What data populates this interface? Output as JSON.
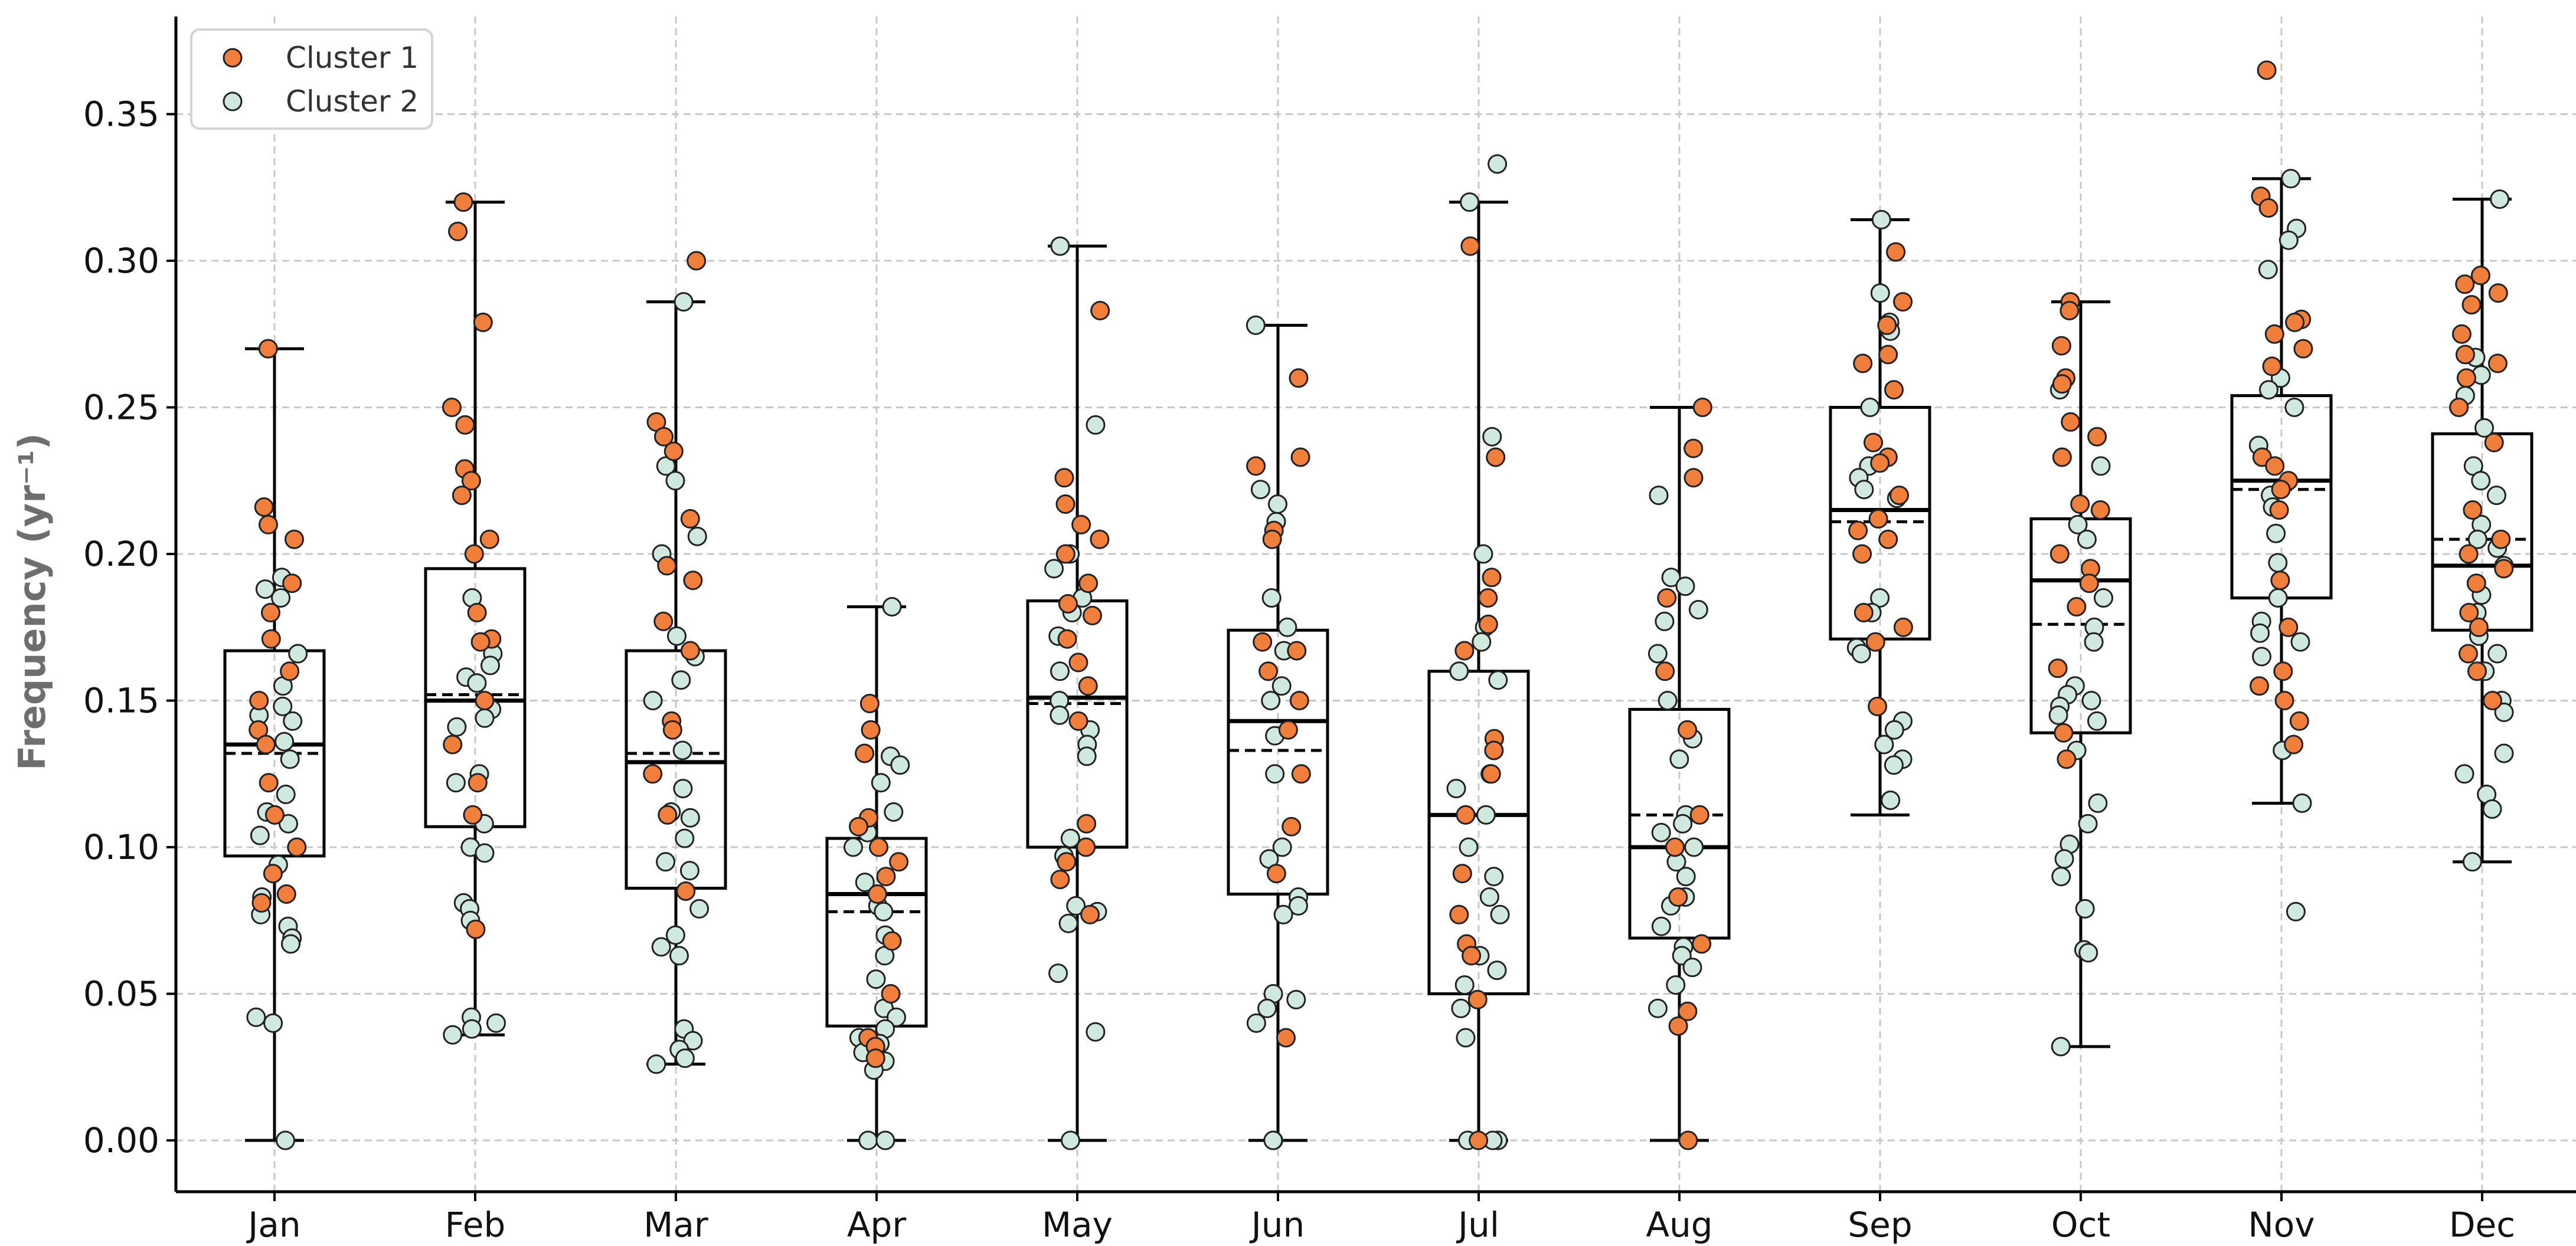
{
  "chart_data": {
    "type": "box",
    "ylabel": "Frequency (yr⁻¹)",
    "xlabel": "",
    "title": "",
    "ylim": [
      -0.018,
      0.383
    ],
    "yticks": [
      0.0,
      0.05,
      0.1,
      0.15,
      0.2,
      0.25,
      0.3,
      0.35
    ],
    "ytick_labels": [
      "0.00",
      "0.05",
      "0.10",
      "0.15",
      "0.20",
      "0.25",
      "0.30",
      "0.35"
    ],
    "grid": true,
    "legend_position": "top-left",
    "categories": [
      "Jan",
      "Feb",
      "Mar",
      "Apr",
      "May",
      "Jun",
      "Jul",
      "Aug",
      "Sep",
      "Oct",
      "Nov",
      "Dec"
    ],
    "legend": [
      {
        "name": "Cluster 1",
        "color": "#f07f3c"
      },
      {
        "name": "Cluster 2",
        "color": "#cfe9df"
      }
    ],
    "boxes": [
      {
        "month": "Jan",
        "whisker_low": 0.0,
        "q1": 0.097,
        "median": 0.135,
        "mean": 0.132,
        "q3": 0.167,
        "whisker_high": 0.27
      },
      {
        "month": "Feb",
        "whisker_low": 0.036,
        "q1": 0.107,
        "median": 0.15,
        "mean": 0.152,
        "q3": 0.195,
        "whisker_high": 0.32
      },
      {
        "month": "Mar",
        "whisker_low": 0.026,
        "q1": 0.086,
        "median": 0.129,
        "mean": 0.132,
        "q3": 0.167,
        "whisker_high": 0.286
      },
      {
        "month": "Apr",
        "whisker_low": 0.0,
        "q1": 0.039,
        "median": 0.084,
        "mean": 0.078,
        "q3": 0.103,
        "whisker_high": 0.182
      },
      {
        "month": "May",
        "whisker_low": 0.0,
        "q1": 0.1,
        "median": 0.151,
        "mean": 0.149,
        "q3": 0.184,
        "whisker_high": 0.305
      },
      {
        "month": "Jun",
        "whisker_low": 0.0,
        "q1": 0.084,
        "median": 0.143,
        "mean": 0.133,
        "q3": 0.174,
        "whisker_high": 0.278
      },
      {
        "month": "Jul",
        "whisker_low": 0.0,
        "q1": 0.05,
        "median": 0.111,
        "mean": 0.111,
        "q3": 0.16,
        "whisker_high": 0.32
      },
      {
        "month": "Aug",
        "whisker_low": 0.0,
        "q1": 0.069,
        "median": 0.1,
        "mean": 0.111,
        "q3": 0.147,
        "whisker_high": 0.25
      },
      {
        "month": "Sep",
        "whisker_low": 0.111,
        "q1": 0.171,
        "median": 0.215,
        "mean": 0.211,
        "q3": 0.25,
        "whisker_high": 0.314
      },
      {
        "month": "Oct",
        "whisker_low": 0.032,
        "q1": 0.139,
        "median": 0.191,
        "mean": 0.176,
        "q3": 0.212,
        "whisker_high": 0.286
      },
      {
        "month": "Nov",
        "whisker_low": 0.115,
        "q1": 0.185,
        "median": 0.225,
        "mean": 0.222,
        "q3": 0.254,
        "whisker_high": 0.328
      },
      {
        "month": "Dec",
        "whisker_low": 0.095,
        "q1": 0.174,
        "median": 0.196,
        "mean": 0.205,
        "q3": 0.241,
        "whisker_high": 0.321
      }
    ],
    "points": {
      "Jan": {
        "cluster1": [
          0.27,
          0.216,
          0.21,
          0.205,
          0.19,
          0.18,
          0.171,
          0.16,
          0.15,
          0.14,
          0.135,
          0.122,
          0.111,
          0.1,
          0.091,
          0.084,
          0.081
        ],
        "cluster2": [
          0.192,
          0.188,
          0.185,
          0.166,
          0.155,
          0.148,
          0.145,
          0.143,
          0.136,
          0.13,
          0.118,
          0.112,
          0.108,
          0.104,
          0.094,
          0.083,
          0.077,
          0.073,
          0.069,
          0.067,
          0.042,
          0.04,
          0.0
        ]
      },
      "Feb": {
        "cluster1": [
          0.32,
          0.31,
          0.279,
          0.25,
          0.244,
          0.229,
          0.225,
          0.22,
          0.205,
          0.2,
          0.18,
          0.171,
          0.17,
          0.15,
          0.135,
          0.122,
          0.111,
          0.072
        ],
        "cluster2": [
          0.185,
          0.166,
          0.162,
          0.158,
          0.156,
          0.147,
          0.144,
          0.141,
          0.125,
          0.122,
          0.108,
          0.1,
          0.098,
          0.081,
          0.079,
          0.075,
          0.042,
          0.04,
          0.038,
          0.036
        ]
      },
      "Mar": {
        "cluster1": [
          0.3,
          0.245,
          0.24,
          0.235,
          0.212,
          0.196,
          0.191,
          0.177,
          0.167,
          0.143,
          0.14,
          0.125,
          0.111,
          0.085
        ],
        "cluster2": [
          0.286,
          0.23,
          0.225,
          0.206,
          0.2,
          0.172,
          0.165,
          0.157,
          0.15,
          0.133,
          0.12,
          0.112,
          0.11,
          0.103,
          0.095,
          0.092,
          0.079,
          0.07,
          0.066,
          0.063,
          0.038,
          0.034,
          0.031,
          0.028,
          0.026
        ]
      },
      "Apr": {
        "cluster1": [
          0.149,
          0.14,
          0.132,
          0.11,
          0.107,
          0.1,
          0.095,
          0.09,
          0.084,
          0.068,
          0.05,
          0.035,
          0.032,
          0.028
        ],
        "cluster2": [
          0.182,
          0.131,
          0.128,
          0.122,
          0.112,
          0.105,
          0.1,
          0.088,
          0.08,
          0.078,
          0.07,
          0.063,
          0.055,
          0.045,
          0.042,
          0.038,
          0.035,
          0.033,
          0.03,
          0.027,
          0.024,
          0.0,
          0.0
        ]
      },
      "May": {
        "cluster1": [
          0.283,
          0.226,
          0.217,
          0.21,
          0.205,
          0.2,
          0.19,
          0.183,
          0.179,
          0.171,
          0.163,
          0.155,
          0.143,
          0.108,
          0.1,
          0.095,
          0.089,
          0.077
        ],
        "cluster2": [
          0.305,
          0.244,
          0.2,
          0.195,
          0.185,
          0.18,
          0.172,
          0.16,
          0.15,
          0.145,
          0.14,
          0.135,
          0.131,
          0.103,
          0.097,
          0.08,
          0.078,
          0.074,
          0.057,
          0.037,
          0.0
        ]
      },
      "Jun": {
        "cluster1": [
          0.26,
          0.233,
          0.23,
          0.208,
          0.205,
          0.17,
          0.167,
          0.16,
          0.15,
          0.14,
          0.125,
          0.107,
          0.091,
          0.035
        ],
        "cluster2": [
          0.278,
          0.222,
          0.217,
          0.211,
          0.185,
          0.175,
          0.167,
          0.155,
          0.15,
          0.138,
          0.125,
          0.1,
          0.096,
          0.083,
          0.08,
          0.077,
          0.05,
          0.048,
          0.045,
          0.04,
          0.0,
          0.0
        ]
      },
      "Jul": {
        "cluster1": [
          0.305,
          0.233,
          0.192,
          0.185,
          0.176,
          0.167,
          0.137,
          0.133,
          0.125,
          0.111,
          0.091,
          0.077,
          0.067,
          0.063,
          0.048,
          0.0
        ],
        "cluster2": [
          0.333,
          0.32,
          0.24,
          0.2,
          0.175,
          0.17,
          0.16,
          0.157,
          0.125,
          0.12,
          0.111,
          0.1,
          0.09,
          0.083,
          0.077,
          0.063,
          0.058,
          0.053,
          0.045,
          0.035,
          0.0,
          0.0,
          0.0
        ]
      },
      "Aug": {
        "cluster1": [
          0.25,
          0.236,
          0.226,
          0.185,
          0.16,
          0.14,
          0.111,
          0.1,
          0.083,
          0.067,
          0.044,
          0.039,
          0.0
        ],
        "cluster2": [
          0.22,
          0.192,
          0.189,
          0.181,
          0.177,
          0.166,
          0.15,
          0.137,
          0.13,
          0.111,
          0.108,
          0.105,
          0.1,
          0.095,
          0.09,
          0.083,
          0.08,
          0.073,
          0.066,
          0.063,
          0.059,
          0.053,
          0.045
        ]
      },
      "Sep": {
        "cluster1": [
          0.303,
          0.286,
          0.278,
          0.268,
          0.265,
          0.256,
          0.238,
          0.233,
          0.231,
          0.22,
          0.212,
          0.208,
          0.205,
          0.2,
          0.18,
          0.175,
          0.17,
          0.148
        ],
        "cluster2": [
          0.314,
          0.289,
          0.279,
          0.276,
          0.25,
          0.23,
          0.226,
          0.222,
          0.219,
          0.185,
          0.18,
          0.168,
          0.166,
          0.143,
          0.14,
          0.135,
          0.13,
          0.128,
          0.116
        ]
      },
      "Oct": {
        "cluster1": [
          0.286,
          0.283,
          0.271,
          0.26,
          0.258,
          0.245,
          0.24,
          0.233,
          0.217,
          0.215,
          0.2,
          0.195,
          0.19,
          0.182,
          0.161,
          0.139,
          0.13
        ],
        "cluster2": [
          0.256,
          0.23,
          0.21,
          0.205,
          0.185,
          0.175,
          0.17,
          0.155,
          0.152,
          0.15,
          0.148,
          0.145,
          0.143,
          0.133,
          0.115,
          0.108,
          0.101,
          0.096,
          0.09,
          0.079,
          0.065,
          0.064,
          0.032
        ]
      },
      "Nov": {
        "cluster1": [
          0.365,
          0.322,
          0.318,
          0.28,
          0.279,
          0.275,
          0.27,
          0.264,
          0.233,
          0.23,
          0.225,
          0.222,
          0.215,
          0.191,
          0.175,
          0.16,
          0.155,
          0.15,
          0.143,
          0.135
        ],
        "cluster2": [
          0.328,
          0.311,
          0.307,
          0.297,
          0.26,
          0.256,
          0.25,
          0.237,
          0.22,
          0.216,
          0.207,
          0.197,
          0.185,
          0.177,
          0.173,
          0.17,
          0.165,
          0.133,
          0.115,
          0.078
        ]
      },
      "Dec": {
        "cluster1": [
          0.295,
          0.292,
          0.289,
          0.285,
          0.275,
          0.268,
          0.265,
          0.26,
          0.25,
          0.238,
          0.215,
          0.205,
          0.2,
          0.195,
          0.19,
          0.18,
          0.175,
          0.166,
          0.16,
          0.15
        ],
        "cluster2": [
          0.321,
          0.267,
          0.261,
          0.254,
          0.243,
          0.23,
          0.225,
          0.22,
          0.21,
          0.205,
          0.202,
          0.196,
          0.186,
          0.18,
          0.172,
          0.166,
          0.16,
          0.15,
          0.146,
          0.132,
          0.125,
          0.118,
          0.113,
          0.095
        ]
      }
    }
  }
}
